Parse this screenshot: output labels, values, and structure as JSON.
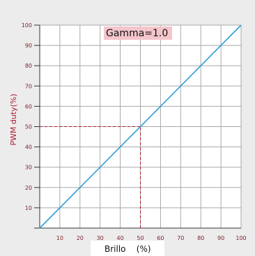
{
  "chart_data": {
    "type": "line",
    "title": "",
    "xlabel": "Brillo    (%)",
    "ylabel": "PWM duty(%)",
    "annotation": "Gamma=1.0",
    "xlim": [
      0,
      100
    ],
    "ylim": [
      0,
      100
    ],
    "x_ticks": [
      10,
      20,
      30,
      40,
      50,
      60,
      70,
      80,
      90,
      100
    ],
    "y_ticks": [
      10,
      20,
      30,
      40,
      50,
      60,
      70,
      80,
      90,
      100
    ],
    "grid": true,
    "series": [
      {
        "x": [
          0,
          100
        ],
        "y": [
          0,
          100
        ],
        "color": "#2b9fd6"
      }
    ],
    "reference_lines": [
      {
        "x": [
          0,
          50
        ],
        "y": [
          50,
          50
        ],
        "style": "dashed",
        "color": "#b0172e"
      },
      {
        "x": [
          50,
          50
        ],
        "y": [
          0,
          50
        ],
        "style": "dashed",
        "color": "#b0172e"
      }
    ],
    "colors": {
      "background": "#ececec",
      "plot_area": "#ffffff",
      "grid": "#a8a8a8",
      "axis": "#333333",
      "ylabel": "#b0172e",
      "annotation_bg": "#f4c6cc",
      "xlabel_bg": "#ffffff"
    }
  }
}
